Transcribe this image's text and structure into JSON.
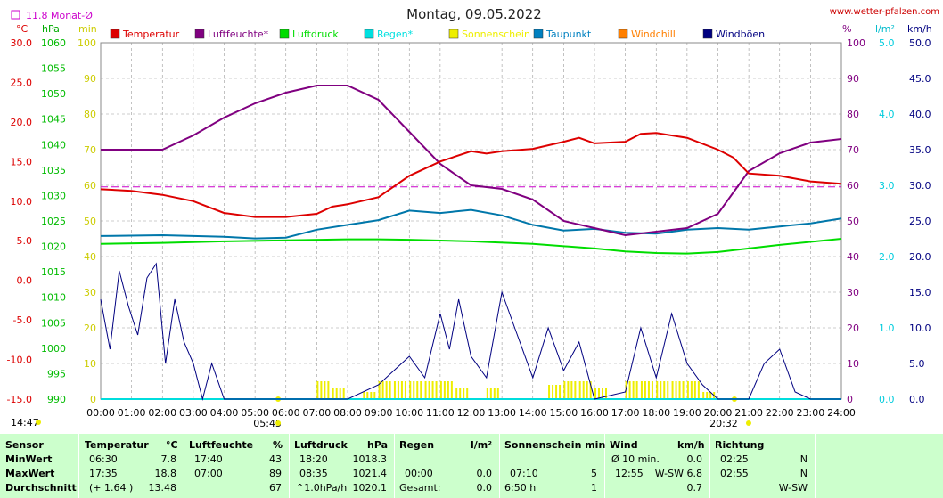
{
  "header": {
    "title": "Montag, 09.05.2022",
    "website": "www.wetter-pfalzen.com",
    "monthly_avg_label": "11.8 Monat-Ø",
    "left_units": [
      "°C",
      "hPa",
      "min"
    ],
    "right_units": [
      "%",
      "l/m²",
      "km/h"
    ]
  },
  "legend": [
    {
      "label": "Temperatur",
      "color": "#dd0000"
    },
    {
      "label": "Luftfeuchte*",
      "color": "#800080"
    },
    {
      "label": "Luftdruck",
      "color": "#00dd00"
    },
    {
      "label": "Regen*",
      "color": "#00e0e0"
    },
    {
      "label": "Sonnenschein",
      "color": "#eeee00"
    },
    {
      "label": "Taupunkt",
      "color": "#0080c0"
    },
    {
      "label": "Windchill",
      "color": "#ff7f00"
    },
    {
      "label": "Windböen",
      "color": "#000080"
    }
  ],
  "axes": {
    "temp_ticks": [
      "30.0",
      "25.0",
      "20.0",
      "15.0",
      "10.0",
      "5.0",
      "0.0",
      "-5.0",
      "-10.0",
      "-15.0"
    ],
    "hpa_ticks": [
      "1060",
      "1055",
      "1050",
      "1045",
      "1040",
      "1035",
      "1030",
      "1025",
      "1020",
      "1015",
      "1010",
      "1005",
      "1000",
      "995",
      "990"
    ],
    "min_ticks": [
      "100",
      "90",
      "80",
      "70",
      "60",
      "50",
      "40",
      "30",
      "20",
      "10",
      "0"
    ],
    "pct_ticks": [
      "100",
      "90",
      "80",
      "70",
      "60",
      "50",
      "40",
      "30",
      "20",
      "10",
      "0"
    ],
    "rain_ticks": [
      "5.0",
      "4.0",
      "3.0",
      "2.0",
      "1.0",
      "0.0"
    ],
    "kmh_ticks": [
      "50.0",
      "45.0",
      "40.0",
      "35.0",
      "30.0",
      "25.0",
      "20.0",
      "15.0",
      "10.0",
      "5.0",
      "0.0"
    ],
    "time_ticks": [
      "00:00",
      "01:00",
      "02:00",
      "03:00",
      "04:00",
      "05:00",
      "06:00",
      "07:00",
      "08:00",
      "09:00",
      "10:00",
      "11:00",
      "12:00",
      "13:00",
      "14:00",
      "15:00",
      "16:00",
      "17:00",
      "18:00",
      "19:00",
      "20:00",
      "21:00",
      "22:00",
      "23:00",
      "24:00"
    ],
    "sunrise": "05:45",
    "sunset": "20:32",
    "now": "14:47"
  },
  "chart_data": {
    "type": "line",
    "title": "Montag, 09.05.2022",
    "x_unit": "hours",
    "xlim": [
      0,
      24
    ],
    "monthly_avg_temp": 11.8,
    "series": [
      {
        "name": "Temperatur",
        "axis": "°C",
        "ylim": [
          -15,
          30
        ],
        "x": [
          0,
          1,
          2,
          3,
          4,
          5,
          6,
          7,
          7.5,
          8,
          9,
          10,
          11,
          12,
          12.5,
          13,
          14,
          15,
          15.5,
          16,
          17,
          17.5,
          18,
          19,
          20,
          20.5,
          21,
          22,
          23,
          24
        ],
        "values": [
          11.5,
          11.3,
          10.8,
          10.0,
          8.5,
          8.0,
          8.0,
          8.4,
          9.3,
          9.6,
          10.5,
          13.2,
          15.0,
          16.3,
          16.0,
          16.3,
          16.6,
          17.5,
          18.0,
          17.3,
          17.5,
          18.5,
          18.6,
          18.0,
          16.5,
          15.5,
          13.5,
          13.2,
          12.5,
          12.2
        ]
      },
      {
        "name": "Luftfeuchte*",
        "axis": "%",
        "x": [
          0,
          2,
          3,
          4,
          5,
          6,
          7,
          8,
          9,
          10,
          11,
          12,
          13,
          14,
          15,
          16,
          17,
          18,
          19,
          20,
          21,
          22,
          23,
          24
        ],
        "values": [
          70,
          70,
          74,
          79,
          83,
          86,
          88,
          88,
          84,
          75,
          66,
          60,
          59,
          56,
          50,
          48,
          46,
          47,
          48,
          52,
          64,
          69,
          72,
          73
        ]
      },
      {
        "name": "Luftdruck",
        "axis": "hPa",
        "ylim": [
          990,
          1060
        ],
        "x": [
          0,
          2,
          4,
          6,
          8,
          9,
          10,
          12,
          14,
          16,
          17,
          18,
          19,
          20,
          22,
          24
        ],
        "values": [
          1020.5,
          1020.7,
          1021.0,
          1021.2,
          1021.4,
          1021.4,
          1021.3,
          1021.0,
          1020.5,
          1019.6,
          1019.0,
          1018.7,
          1018.6,
          1018.9,
          1020.3,
          1021.5
        ]
      },
      {
        "name": "Taupunkt",
        "axis": "°C",
        "x": [
          0,
          2,
          4,
          5,
          6,
          7,
          8,
          9,
          10,
          11,
          12,
          13,
          14,
          15,
          16,
          17,
          18,
          19,
          20,
          21,
          22,
          23,
          24
        ],
        "values": [
          5.6,
          5.7,
          5.5,
          5.3,
          5.4,
          6.4,
          7.0,
          7.6,
          8.8,
          8.5,
          8.9,
          8.2,
          7.0,
          6.3,
          6.5,
          6.0,
          5.9,
          6.4,
          6.6,
          6.4,
          6.8,
          7.2,
          7.8
        ]
      },
      {
        "name": "Windböen",
        "axis": "km/h",
        "ylim": [
          0,
          50
        ],
        "x": [
          0,
          0.3,
          0.6,
          0.9,
          1.2,
          1.5,
          1.8,
          2.1,
          2.4,
          2.7,
          3.0,
          3.3,
          3.6,
          4.0,
          5.0,
          7.0,
          8.0,
          9.0,
          9.5,
          10.0,
          10.5,
          11.0,
          11.3,
          11.6,
          12.0,
          12.5,
          13.0,
          13.5,
          14.0,
          14.5,
          15.0,
          15.5,
          16.0,
          17.0,
          17.5,
          18.0,
          18.5,
          19.0,
          19.5,
          20.0,
          21.0,
          21.5,
          22.0,
          22.5,
          23.0,
          24.0
        ],
        "values": [
          14,
          7,
          18,
          13,
          9,
          17,
          19,
          5,
          14,
          8,
          5,
          0,
          5,
          0,
          0,
          0,
          0,
          2,
          4,
          6,
          3,
          12,
          7,
          14,
          6,
          3,
          15,
          9,
          3,
          10,
          4,
          8,
          0,
          1,
          10,
          3,
          12,
          5,
          2,
          0,
          0,
          5,
          7,
          1,
          0,
          0
        ]
      },
      {
        "name": "Sonnenschein",
        "axis": "min",
        "x": [
          7.0,
          7.5,
          8.5,
          9.0,
          9.5,
          10.0,
          10.5,
          11.0,
          11.5,
          12.5,
          14.5,
          15.0,
          15.5,
          16.0,
          17.0,
          17.5,
          18.0,
          18.5,
          19.0,
          19.5
        ],
        "values": [
          5,
          3,
          2,
          5,
          5,
          5,
          5,
          5,
          3,
          3,
          4,
          5,
          5,
          3,
          5,
          5,
          5,
          5,
          5,
          2
        ]
      },
      {
        "name": "Regen*",
        "axis": "l/m²",
        "x": [
          0,
          24
        ],
        "values": [
          0,
          0
        ]
      }
    ]
  },
  "table": {
    "headers": {
      "sensor": "Sensor",
      "temp": "Temperatur",
      "temp_unit": "°C",
      "hum": "Luftfeuchte",
      "hum_unit": "%",
      "press": "Luftdruck",
      "press_unit": "hPa",
      "rain": "Regen",
      "rain_unit": "l/m²",
      "sun": "Sonnenschein min",
      "wind": "Wind",
      "wind_unit": "km/h",
      "dir": "Richtung"
    },
    "rows": [
      {
        "label": "MinWert",
        "temp_time": "06:30",
        "temp_val": "7.8",
        "hum_time": "17:40",
        "hum_val": "43",
        "press_time": "18:20",
        "press_val": "1018.3",
        "rain_time": "",
        "rain_val": "",
        "sun_time": "",
        "sun_val": "",
        "wind_time": "Ø 10 min.",
        "wind_val": "0.0",
        "dir_time": "02:25",
        "dir_val": "N"
      },
      {
        "label": "MaxWert",
        "temp_time": "17:35",
        "temp_val": "18.8",
        "hum_time": "07:00",
        "hum_val": "89",
        "press_time": "08:35",
        "press_val": "1021.4",
        "rain_time": "00:00",
        "rain_val": "0.0",
        "sun_time": "07:10",
        "sun_val": "5",
        "wind_time": "12:55",
        "wind_val": "W-SW 6.8",
        "dir_time": "02:55",
        "dir_val": "N"
      },
      {
        "label": "Durchschnitt",
        "temp_time": "(+ 1.64 )",
        "temp_val": "13.48",
        "hum_time": "",
        "hum_val": "67",
        "press_time": "^1.0hPa/h",
        "press_val": "1020.1",
        "rain_time": "Gesamt:",
        "rain_val": "0.0",
        "sun_time": "6:50 h",
        "sun_val": "1",
        "wind_time": "",
        "wind_val": "0.7",
        "dir_time": "",
        "dir_val": "W-SW"
      }
    ]
  }
}
